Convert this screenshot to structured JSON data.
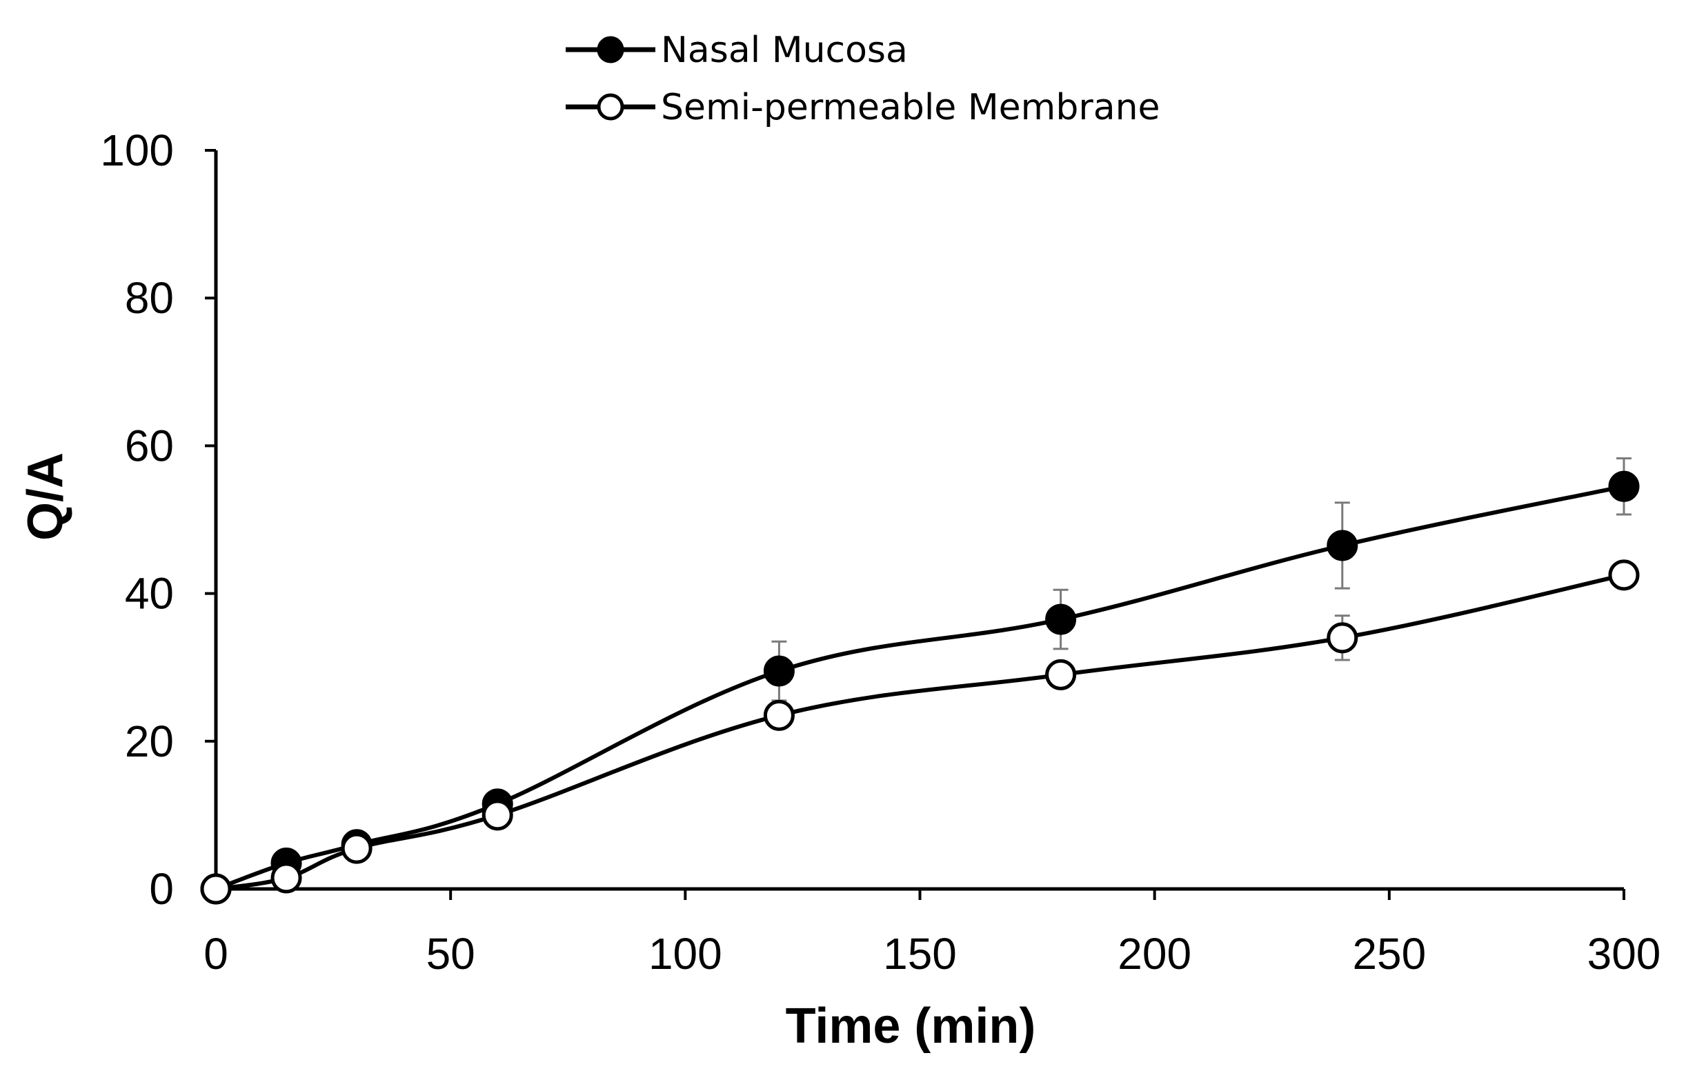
{
  "chart_data": {
    "type": "line",
    "title": "",
    "xlabel": "Time (min)",
    "ylabel": "Q/A",
    "xlim": [
      0,
      300
    ],
    "ylim": [
      0,
      100
    ],
    "xticks": [
      0,
      50,
      100,
      150,
      200,
      250,
      300
    ],
    "yticks": [
      0,
      20,
      40,
      60,
      80,
      100
    ],
    "grid": false,
    "legend_position": "top-center",
    "x": [
      0,
      15,
      30,
      60,
      120,
      180,
      240,
      300
    ],
    "series": [
      {
        "name": "Nasal Mucosa",
        "marker": "filled-circle",
        "values": [
          0,
          3.5,
          6,
          11.5,
          29.5,
          36.5,
          46.5,
          54.5
        ],
        "errors": [
          0,
          0.5,
          0.5,
          0.5,
          4,
          4,
          5.8,
          3.8
        ]
      },
      {
        "name": "Semi-permeable Membrane",
        "marker": "open-circle",
        "values": [
          0,
          1.5,
          5.5,
          10,
          23.5,
          29,
          34,
          42.5
        ],
        "errors": [
          0,
          0.4,
          0.4,
          0.5,
          1.2,
          0.8,
          3,
          0.6
        ]
      }
    ],
    "colors": {
      "line": "#000000",
      "error_bar": "#7a7a7a",
      "open_marker_fill": "#ffffff"
    }
  }
}
